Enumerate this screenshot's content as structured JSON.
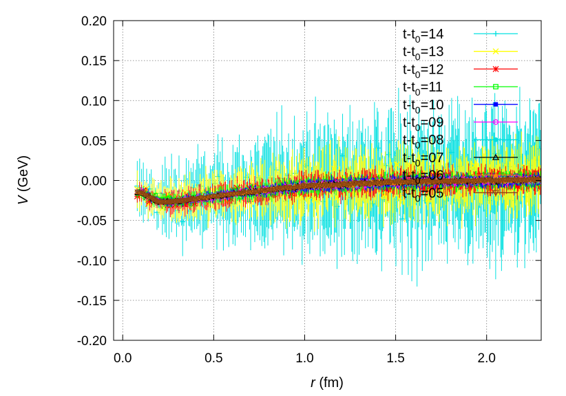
{
  "chart_data": {
    "type": "scatter",
    "title": "",
    "xlabel_var": "r",
    "xlabel_unit": " (fm)",
    "ylabel_var": "V",
    "ylabel_unit": " (GeV)",
    "xlim": [
      -0.05,
      2.3
    ],
    "ylim": [
      -0.2,
      0.2
    ],
    "xticks": [
      0.0,
      0.5,
      1.0,
      1.5,
      2.0
    ],
    "xtick_labels": [
      "0.0",
      "0.5",
      "1.0",
      "1.5",
      "2.0"
    ],
    "yticks": [
      -0.2,
      -0.15,
      -0.1,
      -0.05,
      0.0,
      0.05,
      0.1,
      0.15,
      0.2
    ],
    "ytick_labels": [
      "-0.20",
      "-0.15",
      "-0.10",
      "-0.05",
      "0.00",
      "0.05",
      "0.10",
      "0.15",
      "0.20"
    ],
    "grid": true,
    "legend_position": "top-right",
    "r_range": [
      0.08,
      2.3
    ],
    "series": [
      {
        "name": "t-t0=14",
        "prefix": "t-t",
        "sub": "0",
        "suffix": "=14",
        "color": "#00e0e0",
        "marker": "plus",
        "spread_small_r": 0.025,
        "spread_large_r": 0.06
      },
      {
        "name": "t-t0=13",
        "prefix": "t-t",
        "sub": "0",
        "suffix": "=13",
        "color": "#ffff00",
        "marker": "x",
        "spread_small_r": 0.015,
        "spread_large_r": 0.03
      },
      {
        "name": "t-t0=12",
        "prefix": "t-t",
        "sub": "0",
        "suffix": "=12",
        "color": "#ff0000",
        "marker": "star",
        "spread_small_r": 0.01,
        "spread_large_r": 0.012
      },
      {
        "name": "t-t0=11",
        "prefix": "t-t",
        "sub": "0",
        "suffix": "=11",
        "color": "#00ff00",
        "marker": "open-square",
        "spread_small_r": 0.007,
        "spread_large_r": 0.008
      },
      {
        "name": "t-t0=10",
        "prefix": "t-t",
        "sub": "0",
        "suffix": "=10",
        "color": "#0000ff",
        "marker": "filled-square",
        "spread_small_r": 0.004,
        "spread_large_r": 0.006
      },
      {
        "name": "t-t0=09",
        "prefix": "t-t",
        "sub": "0",
        "suffix": "=09",
        "color": "#ff00ff",
        "marker": "open-circle",
        "spread_small_r": 0.003,
        "spread_large_r": 0.004
      },
      {
        "name": "t-t0=08",
        "prefix": "t-t",
        "sub": "0",
        "suffix": "=08",
        "color": "#00e0e0",
        "marker": "filled-circle",
        "spread_small_r": 0.002,
        "spread_large_r": 0.003
      },
      {
        "name": "t-t0=07",
        "prefix": "t-t",
        "sub": "0",
        "suffix": "=07",
        "color": "#000000",
        "marker": "open-triangle",
        "spread_small_r": 0.002,
        "spread_large_r": 0.003
      },
      {
        "name": "t-t0=06",
        "prefix": "t-t",
        "sub": "0",
        "suffix": "=06",
        "color": "#ff8c00",
        "marker": "filled-triangle",
        "spread_small_r": 0.002,
        "spread_large_r": 0.003
      },
      {
        "name": "t-t0=05",
        "prefix": "t-t",
        "sub": "0",
        "suffix": "=05",
        "color": "#8b4513",
        "marker": "open-inverted-triangle",
        "spread_small_r": 0.002,
        "spread_large_r": 0.003
      }
    ],
    "central_curve": {
      "r": [
        0.1,
        0.2,
        0.3,
        0.5,
        0.7,
        1.0,
        1.5,
        2.0,
        2.3
      ],
      "V": [
        -0.015,
        -0.027,
        -0.026,
        -0.02,
        -0.014,
        -0.007,
        -0.002,
        0.0,
        0.001
      ]
    }
  }
}
